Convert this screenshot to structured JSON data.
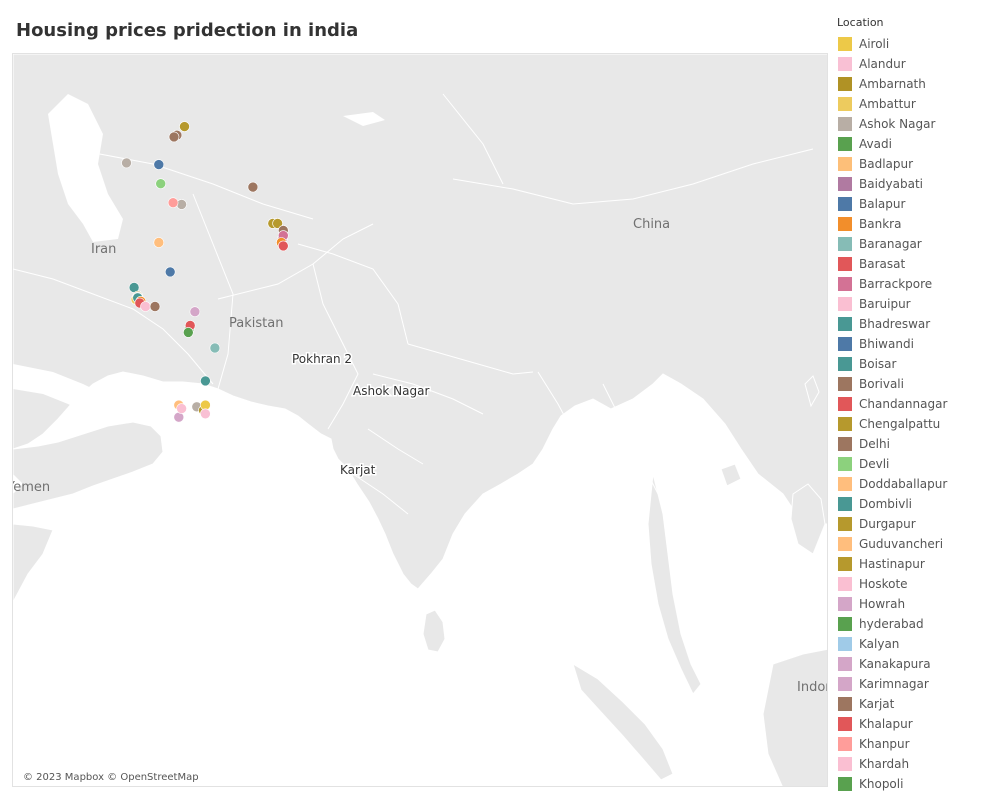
{
  "title": "Housing prices pridection in india",
  "map": {
    "attribution": "© 2023 Mapbox © OpenStreetMap",
    "colors": {
      "water": "#ffffff",
      "land": "#e8e8e8",
      "border": "#ffffff",
      "country_label": "#707070",
      "city_label": "#333333"
    },
    "country_labels": [
      "Iran",
      "Pakistan",
      "China",
      "Yemen",
      "Indon"
    ],
    "city_labels": [
      "Pokhran 2",
      "Ashok Nagar",
      "Karjat"
    ]
  },
  "legend": {
    "title": "Location",
    "items": [
      {
        "label": "Airoli",
        "color": "#EDC948"
      },
      {
        "label": "Alandur",
        "color": "#F9C0D4"
      },
      {
        "label": "Ambarnath",
        "color": "#B09225"
      },
      {
        "label": "Ambattur",
        "color": "#EDCB5E"
      },
      {
        "label": "Ashok Nagar",
        "color": "#B8AEA5"
      },
      {
        "label": "Avadi",
        "color": "#59A14F"
      },
      {
        "label": "Badlapur",
        "color": "#FDBF79"
      },
      {
        "label": "Baidyabati",
        "color": "#B07AA1"
      },
      {
        "label": "Balapur",
        "color": "#4E79A7"
      },
      {
        "label": "Bankra",
        "color": "#F28E2B"
      },
      {
        "label": "Baranagar",
        "color": "#86BCB6"
      },
      {
        "label": "Barasat",
        "color": "#E15759"
      },
      {
        "label": "Barrackpore",
        "color": "#D37295"
      },
      {
        "label": "Baruipur",
        "color": "#FABFD2"
      },
      {
        "label": "Bhadreswar",
        "color": "#499894"
      },
      {
        "label": "Bhiwandi",
        "color": "#4E79A7"
      },
      {
        "label": "Boisar",
        "color": "#499894"
      },
      {
        "label": "Borivali",
        "color": "#9D7660"
      },
      {
        "label": "Chandannagar",
        "color": "#E15759"
      },
      {
        "label": "Chengalpattu",
        "color": "#B6992D"
      },
      {
        "label": "Delhi",
        "color": "#9D7660"
      },
      {
        "label": "Devli",
        "color": "#8CD17D"
      },
      {
        "label": "Doddaballapur",
        "color": "#FFBE7D"
      },
      {
        "label": "Dombivli",
        "color": "#499894"
      },
      {
        "label": "Durgapur",
        "color": "#B6992D"
      },
      {
        "label": "Guduvancheri",
        "color": "#FFBE7D"
      },
      {
        "label": "Hastinapur",
        "color": "#B6992D"
      },
      {
        "label": "Hoskote",
        "color": "#FABFD2"
      },
      {
        "label": "Howrah",
        "color": "#D4A6C8"
      },
      {
        "label": "hyderabad",
        "color": "#59A14F"
      },
      {
        "label": "Kalyan",
        "color": "#A0CBE8"
      },
      {
        "label": "Kanakapura",
        "color": "#D4A6C8"
      },
      {
        "label": "Karimnagar",
        "color": "#D4A6C8"
      },
      {
        "label": "Karjat",
        "color": "#9D7660"
      },
      {
        "label": "Khalapur",
        "color": "#E15759"
      },
      {
        "label": "Khanpur",
        "color": "#FF9D9A"
      },
      {
        "label": "Khardah",
        "color": "#FABFD2"
      },
      {
        "label": "Khopoli",
        "color": "#59A14F"
      }
    ]
  },
  "points": [
    {
      "location": "Delhi",
      "lon": 77.2,
      "lat": 28.6
    },
    {
      "location": "Hastinapur",
      "lon": 78.0,
      "lat": 29.1
    },
    {
      "location": "Borivali",
      "lon": 76.9,
      "lat": 28.5
    },
    {
      "location": "Ashok Nagar",
      "lon": 77.7,
      "lat": 24.6
    },
    {
      "location": "Khanpur",
      "lon": 76.8,
      "lat": 24.7
    },
    {
      "location": "Devli",
      "lon": 75.5,
      "lat": 25.8
    },
    {
      "location": "Balapur",
      "lon": 75.3,
      "lat": 26.9
    },
    {
      "location": "Doddaballapur",
      "lon": 75.3,
      "lat": 22.4
    },
    {
      "location": "Bhiwandi",
      "lon": 76.5,
      "lat": 20.7
    },
    {
      "location": "Boisar",
      "lon": 72.7,
      "lat": 19.8
    },
    {
      "location": "Airoli",
      "lon": 73.0,
      "lat": 19.2
    },
    {
      "location": "Ambattur",
      "lon": 72.9,
      "lat": 19.1
    },
    {
      "location": "Ambarnath",
      "lon": 73.1,
      "lat": 19.3
    },
    {
      "location": "Kalyan",
      "lon": 73.1,
      "lat": 19.24
    },
    {
      "location": "Dombivli",
      "lon": 73.08,
      "lat": 19.2
    },
    {
      "location": "Bankra",
      "lon": 73.4,
      "lat": 19.0
    },
    {
      "location": "Khalapur",
      "lon": 73.3,
      "lat": 18.9
    },
    {
      "location": "Baruipur",
      "lon": 73.9,
      "lat": 18.7
    },
    {
      "location": "Karjat",
      "lon": 74.9,
      "lat": 18.7
    },
    {
      "location": "Karimnagar",
      "lon": 79.1,
      "lat": 18.4
    },
    {
      "location": "hyderabad",
      "lon": 78.5,
      "lat": 17.4
    },
    {
      "location": "Barasat",
      "lon": 78.6,
      "lat": 17.6
    },
    {
      "location": "Avadi",
      "lon": 78.4,
      "lat": 17.2
    },
    {
      "location": "Baranagar",
      "lon": 81.2,
      "lat": 16.3
    },
    {
      "location": "Bhadreswar",
      "lon": 80.2,
      "lat": 14.4
    },
    {
      "location": "Guduvancheri",
      "lon": 77.4,
      "lat": 13.0
    },
    {
      "location": "Kanakapura",
      "lon": 77.4,
      "lat": 12.3
    },
    {
      "location": "Hoskote",
      "lon": 77.7,
      "lat": 12.8
    },
    {
      "location": "Ashok Nagar",
      "lon": 79.3,
      "lat": 12.9
    },
    {
      "location": "Chengalpattu",
      "lon": 80.0,
      "lat": 12.7
    },
    {
      "location": "Airoli",
      "lon": 80.2,
      "lat": 13.0
    },
    {
      "location": "Alandur",
      "lon": 80.2,
      "lat": 12.5
    },
    {
      "location": "Borivali",
      "lon": 85.2,
      "lat": 25.6
    },
    {
      "location": "Durgapur",
      "lon": 87.3,
      "lat": 23.5
    },
    {
      "location": "Hastinapur",
      "lon": 87.8,
      "lat": 23.5
    },
    {
      "location": "Borivali",
      "lon": 88.4,
      "lat": 23.1
    },
    {
      "location": "Baidyabati",
      "lon": 88.3,
      "lat": 22.6
    },
    {
      "location": "Barrackpore",
      "lon": 88.4,
      "lat": 22.8
    },
    {
      "location": "Bankra",
      "lon": 88.2,
      "lat": 22.4
    },
    {
      "location": "Barasat",
      "lon": 88.4,
      "lat": 22.2
    },
    {
      "location": "Ashok Nagar",
      "lon": 71.9,
      "lat": 27.0
    }
  ]
}
